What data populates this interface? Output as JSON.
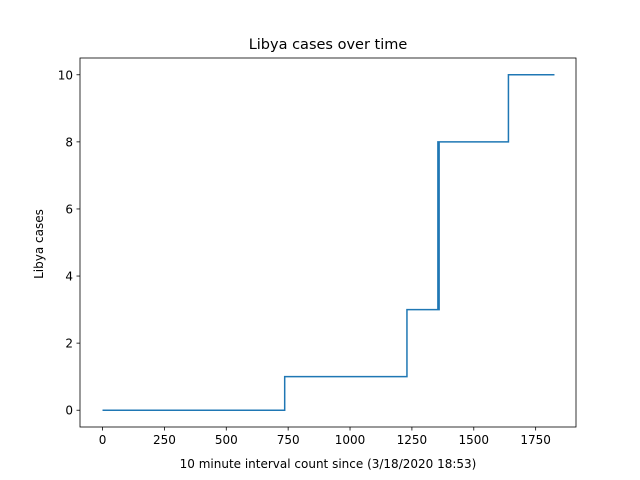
{
  "chart_data": {
    "type": "line",
    "title": "Libya cases over time",
    "xlabel": "10 minute interval count since (3/18/2020 18:53)",
    "ylabel": "Libya cases",
    "xlim": [
      -91,
      1913
    ],
    "ylim": [
      -0.5,
      10.5
    ],
    "xticks": [
      0,
      250,
      500,
      750,
      1000,
      1250,
      1500,
      1750
    ],
    "yticks": [
      0,
      2,
      4,
      6,
      8,
      10
    ],
    "xtick_labels": [
      "0",
      "250",
      "500",
      "750",
      "1000",
      "1250",
      "1500",
      "1750"
    ],
    "ytick_labels": [
      "0",
      "2",
      "4",
      "6",
      "8",
      "10"
    ],
    "grid": false,
    "line_color": "#1f77b4",
    "series": [
      {
        "x": [
          0,
          736,
          736,
          1230,
          1230,
          1355,
          1355,
          1357,
          1357,
          1360,
          1360,
          1640,
          1640,
          1826
        ],
        "y": [
          0,
          0,
          1,
          1,
          3,
          3,
          8,
          8,
          3,
          3,
          8,
          8,
          10,
          10
        ]
      }
    ]
  }
}
